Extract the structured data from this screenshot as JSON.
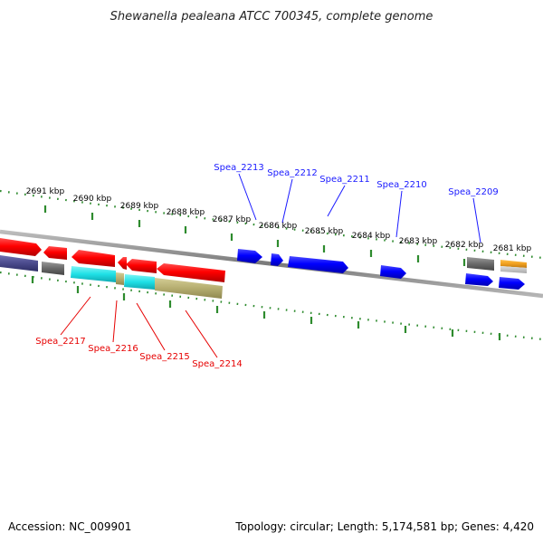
{
  "title": "Shewanella pealeana ATCC 700345, complete genome",
  "footer": {
    "accession": "Accession: NC_009901",
    "summary": "Topology: circular; Length: 5,174,581 bp; Genes: 4,420"
  },
  "kbp_labels": [
    "2691 kbp",
    "2690 kbp",
    "2689 kbp",
    "2688 kbp",
    "2687 kbp",
    "2686 kbp",
    "2685 kbp",
    "2684 kbp",
    "2683 kbp",
    "2682 kbp",
    "2681 kbp"
  ],
  "genes_forward": [
    {
      "label": "Spea_2213",
      "color": "#1a1aff"
    },
    {
      "label": "Spea_2212",
      "color": "#1a1aff"
    },
    {
      "label": "Spea_2211",
      "color": "#1a1aff"
    },
    {
      "label": "Spea_2210",
      "color": "#1a1aff"
    },
    {
      "label": "Spea_2209",
      "color": "#1a1aff"
    }
  ],
  "genes_reverse": [
    {
      "label": "Spea_2217",
      "color": "#e60000"
    },
    {
      "label": "Spea_2216",
      "color": "#e60000"
    },
    {
      "label": "Spea_2215",
      "color": "#e60000"
    },
    {
      "label": "Spea_2214",
      "color": "#e60000"
    }
  ],
  "colors": {
    "forward_strand": "#1a1aff",
    "reverse_strand": "#e60000",
    "backbone": "#8a8a8a",
    "ticks": "#2e8b2e",
    "cog_cyan": "#33e0e0",
    "cog_khaki": "#b5ad70",
    "cog_navy": "#4a4a8c",
    "cog_gray": "#707070",
    "cog_orange": "#f0a020"
  }
}
